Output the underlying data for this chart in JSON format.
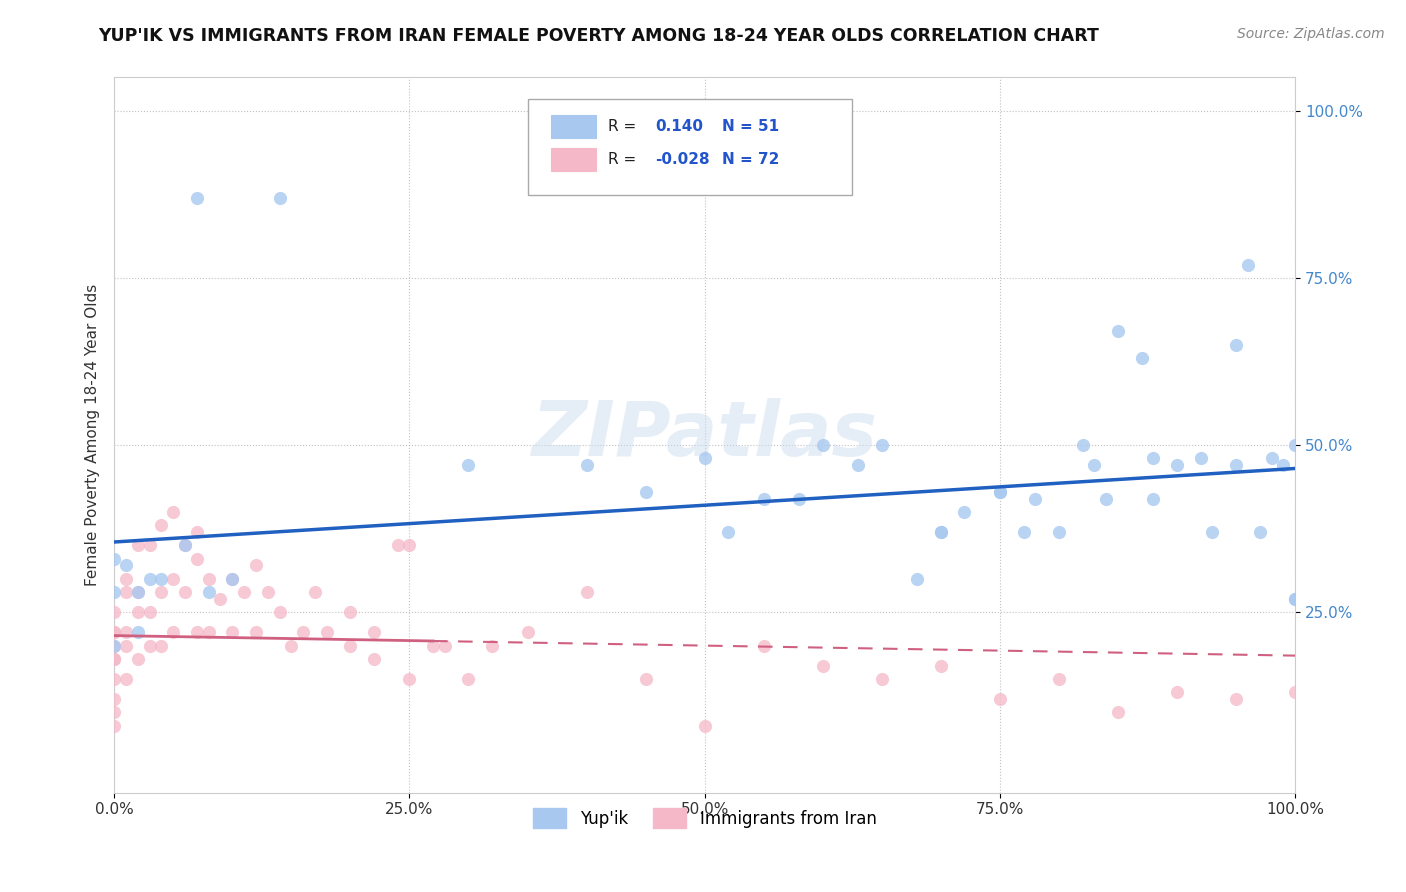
{
  "title": "YUP'IK VS IMMIGRANTS FROM IRAN FEMALE POVERTY AMONG 18-24 YEAR OLDS CORRELATION CHART",
  "source": "Source: ZipAtlas.com",
  "ylabel": "Female Poverty Among 18-24 Year Olds",
  "watermark": "ZIPatlas",
  "legend_labels": [
    "Yup'ik",
    "Immigrants from Iran"
  ],
  "r_yupik": 0.14,
  "n_yupik": 51,
  "r_iran": -0.028,
  "n_iran": 72,
  "yupik_color": "#a8c8f0",
  "iran_color": "#f4b8c8",
  "yupik_line_color": "#2060c0",
  "iran_line_color": "#d06080",
  "xlim": [
    0.0,
    1.0
  ],
  "ylim": [
    -0.02,
    1.05
  ],
  "xtick_vals": [
    0.0,
    0.25,
    0.5,
    0.75,
    1.0
  ],
  "xtick_labels": [
    "0.0%",
    "25.0%",
    "50.0%",
    "75.0%",
    "100.0%"
  ],
  "ytick_vals": [
    0.25,
    0.5,
    0.75,
    1.0
  ],
  "ytick_labels": [
    "25.0%",
    "50.0%",
    "75.0%",
    "100.0%"
  ],
  "yupik_x": [
    0.07,
    0.14,
    0.0,
    0.0,
    0.01,
    0.02,
    0.03,
    0.0,
    0.02,
    0.04,
    0.06,
    0.08,
    0.1,
    0.3,
    0.5,
    0.55,
    0.6,
    0.63,
    0.65,
    0.68,
    0.7,
    0.72,
    0.75,
    0.78,
    0.8,
    0.82,
    0.84,
    0.85,
    0.87,
    0.88,
    0.9,
    0.92,
    0.93,
    0.95,
    0.96,
    0.97,
    0.98,
    0.99,
    1.0,
    1.0,
    0.4,
    0.45,
    0.52,
    0.58,
    0.7,
    0.75,
    0.77,
    0.83,
    0.88,
    0.95,
    1.0
  ],
  "yupik_y": [
    0.87,
    0.87,
    0.33,
    0.28,
    0.32,
    0.22,
    0.3,
    0.2,
    0.28,
    0.3,
    0.35,
    0.28,
    0.3,
    0.47,
    0.48,
    0.42,
    0.5,
    0.47,
    0.5,
    0.3,
    0.37,
    0.4,
    0.43,
    0.42,
    0.37,
    0.5,
    0.42,
    0.67,
    0.63,
    0.42,
    0.47,
    0.48,
    0.37,
    0.65,
    0.77,
    0.37,
    0.48,
    0.47,
    0.5,
    0.27,
    0.47,
    0.43,
    0.37,
    0.42,
    0.37,
    0.43,
    0.37,
    0.47,
    0.48,
    0.47,
    0.27
  ],
  "iran_x": [
    0.0,
    0.0,
    0.0,
    0.0,
    0.0,
    0.0,
    0.0,
    0.0,
    0.0,
    0.0,
    0.01,
    0.01,
    0.01,
    0.01,
    0.01,
    0.02,
    0.02,
    0.02,
    0.02,
    0.03,
    0.03,
    0.03,
    0.04,
    0.04,
    0.04,
    0.05,
    0.05,
    0.05,
    0.06,
    0.06,
    0.07,
    0.07,
    0.07,
    0.08,
    0.08,
    0.09,
    0.1,
    0.1,
    0.11,
    0.12,
    0.12,
    0.13,
    0.14,
    0.15,
    0.16,
    0.17,
    0.18,
    0.2,
    0.22,
    0.22,
    0.24,
    0.25,
    0.27,
    0.3,
    0.32,
    0.35,
    0.4,
    0.45,
    0.5,
    0.55,
    0.6,
    0.65,
    0.7,
    0.75,
    0.8,
    0.85,
    0.9,
    0.95,
    1.0,
    0.2,
    0.25,
    0.28
  ],
  "iran_y": [
    0.22,
    0.18,
    0.25,
    0.2,
    0.15,
    0.12,
    0.1,
    0.08,
    0.18,
    0.22,
    0.28,
    0.2,
    0.3,
    0.15,
    0.22,
    0.35,
    0.25,
    0.18,
    0.28,
    0.35,
    0.25,
    0.2,
    0.38,
    0.28,
    0.2,
    0.4,
    0.3,
    0.22,
    0.35,
    0.28,
    0.33,
    0.22,
    0.37,
    0.3,
    0.22,
    0.27,
    0.3,
    0.22,
    0.28,
    0.32,
    0.22,
    0.28,
    0.25,
    0.2,
    0.22,
    0.28,
    0.22,
    0.25,
    0.22,
    0.18,
    0.35,
    0.15,
    0.2,
    0.15,
    0.2,
    0.22,
    0.28,
    0.15,
    0.08,
    0.2,
    0.17,
    0.15,
    0.17,
    0.12,
    0.15,
    0.1,
    0.13,
    0.12,
    0.13,
    0.2,
    0.35,
    0.2
  ]
}
